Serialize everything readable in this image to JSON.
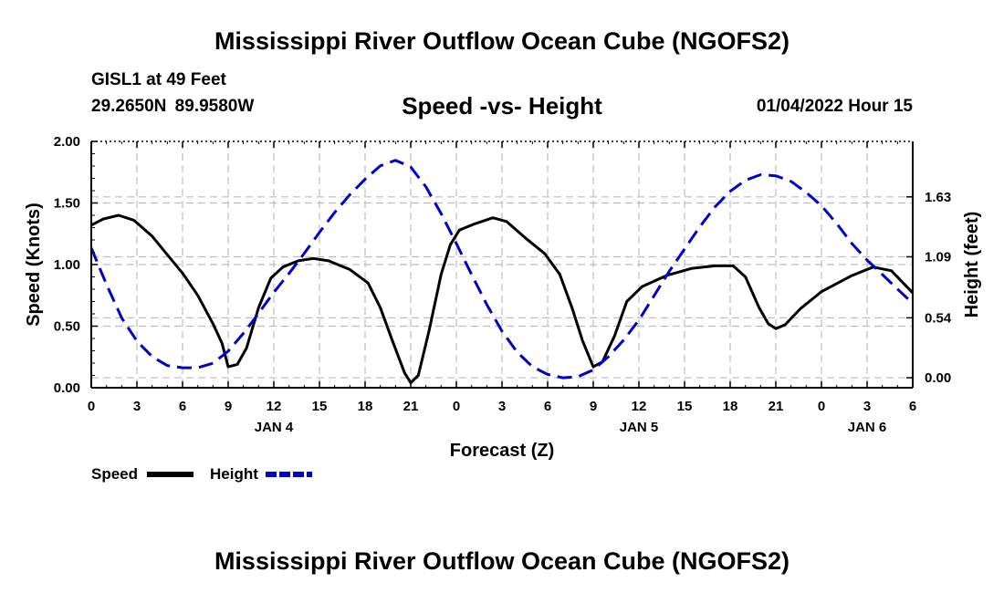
{
  "header": {
    "title": "Mississippi River Outflow Ocean Cube (NGOFS2)",
    "station": "GISL1 at 49 Feet",
    "coords": "29.2650N  89.9580W",
    "subtitle": "Speed -vs- Height",
    "datetime": "01/04/2022 Hour 15"
  },
  "footer": {
    "title": "Mississippi River Outflow Ocean Cube (NGOFS2)"
  },
  "chart_data": {
    "type": "line",
    "title": "Speed -vs- Height",
    "xlabel": "Forecast (Z)",
    "ylabel": "Speed (Knots)",
    "y2label": "Height (feet)",
    "x_range_hours": [
      0,
      54
    ],
    "ylim": [
      0,
      2
    ],
    "y2lim": [
      -0.09,
      2.13
    ],
    "x_ticks": [
      {
        "h": 0,
        "label": "0"
      },
      {
        "h": 3,
        "label": "3"
      },
      {
        "h": 6,
        "label": "6"
      },
      {
        "h": 9,
        "label": "9"
      },
      {
        "h": 12,
        "label": "12"
      },
      {
        "h": 15,
        "label": "15"
      },
      {
        "h": 18,
        "label": "18"
      },
      {
        "h": 21,
        "label": "21"
      },
      {
        "h": 24,
        "label": "0"
      },
      {
        "h": 27,
        "label": "3"
      },
      {
        "h": 30,
        "label": "6"
      },
      {
        "h": 33,
        "label": "9"
      },
      {
        "h": 36,
        "label": "12"
      },
      {
        "h": 39,
        "label": "15"
      },
      {
        "h": 42,
        "label": "18"
      },
      {
        "h": 45,
        "label": "21"
      },
      {
        "h": 48,
        "label": "0"
      },
      {
        "h": 51,
        "label": "3"
      },
      {
        "h": 54,
        "label": "6"
      }
    ],
    "date_labels": [
      {
        "h": 12,
        "label": "JAN 4"
      },
      {
        "h": 36,
        "label": "JAN 5"
      },
      {
        "h": 51,
        "label": "JAN 6"
      }
    ],
    "y_ticks": [
      {
        "v": 0,
        "label": "0.00"
      },
      {
        "v": 0.5,
        "label": "0.50"
      },
      {
        "v": 1.0,
        "label": "1.00"
      },
      {
        "v": 1.5,
        "label": "1.50"
      },
      {
        "v": 2.0,
        "label": "2.00"
      }
    ],
    "y2_ticks": [
      {
        "v": 0,
        "label": "0.00"
      },
      {
        "v": 0.54,
        "label": "0.54"
      },
      {
        "v": 1.09,
        "label": "1.09"
      },
      {
        "v": 1.63,
        "label": "1.63"
      }
    ],
    "series": [
      {
        "name": "Speed",
        "axis": "left",
        "color": "#000000",
        "dash": "solid",
        "points": [
          [
            0,
            1.32
          ],
          [
            0.8,
            1.37
          ],
          [
            1.8,
            1.4
          ],
          [
            2.8,
            1.36
          ],
          [
            4,
            1.23
          ],
          [
            5,
            1.08
          ],
          [
            6,
            0.93
          ],
          [
            7,
            0.75
          ],
          [
            8,
            0.52
          ],
          [
            8.6,
            0.36
          ],
          [
            9,
            0.17
          ],
          [
            9.6,
            0.19
          ],
          [
            10.2,
            0.32
          ],
          [
            11,
            0.65
          ],
          [
            11.8,
            0.89
          ],
          [
            12.6,
            0.98
          ],
          [
            13.6,
            1.03
          ],
          [
            14.6,
            1.05
          ],
          [
            15.6,
            1.03
          ],
          [
            17,
            0.96
          ],
          [
            18.2,
            0.85
          ],
          [
            19,
            0.65
          ],
          [
            19.8,
            0.38
          ],
          [
            20.6,
            0.12
          ],
          [
            21,
            0.04
          ],
          [
            21.5,
            0.1
          ],
          [
            22.2,
            0.46
          ],
          [
            23,
            0.92
          ],
          [
            23.6,
            1.16
          ],
          [
            24.2,
            1.28
          ],
          [
            25.2,
            1.33
          ],
          [
            26.4,
            1.38
          ],
          [
            27.3,
            1.35
          ],
          [
            28.5,
            1.22
          ],
          [
            29.8,
            1.09
          ],
          [
            30.8,
            0.92
          ],
          [
            31.6,
            0.65
          ],
          [
            32.3,
            0.38
          ],
          [
            33,
            0.17
          ],
          [
            33.6,
            0.21
          ],
          [
            34.4,
            0.42
          ],
          [
            35.2,
            0.7
          ],
          [
            36.2,
            0.82
          ],
          [
            37.8,
            0.91
          ],
          [
            39.5,
            0.97
          ],
          [
            41,
            0.99
          ],
          [
            42.2,
            0.99
          ],
          [
            43,
            0.9
          ],
          [
            43.9,
            0.65
          ],
          [
            44.5,
            0.52
          ],
          [
            45,
            0.48
          ],
          [
            45.6,
            0.51
          ],
          [
            46.6,
            0.64
          ],
          [
            48,
            0.78
          ],
          [
            50,
            0.91
          ],
          [
            51.4,
            0.98
          ],
          [
            52.6,
            0.95
          ],
          [
            54,
            0.77
          ]
        ]
      },
      {
        "name": "Height",
        "axis": "right",
        "color": "#0000cc",
        "dash": "dashed",
        "points": [
          [
            0,
            1.17
          ],
          [
            1,
            0.84
          ],
          [
            2,
            0.54
          ],
          [
            3,
            0.33
          ],
          [
            4,
            0.19
          ],
          [
            5,
            0.11
          ],
          [
            6,
            0.09
          ],
          [
            7,
            0.09
          ],
          [
            8,
            0.13
          ],
          [
            9,
            0.24
          ],
          [
            10,
            0.4
          ],
          [
            11,
            0.58
          ],
          [
            12,
            0.77
          ],
          [
            13,
            0.94
          ],
          [
            14,
            1.12
          ],
          [
            15,
            1.31
          ],
          [
            16,
            1.49
          ],
          [
            17,
            1.65
          ],
          [
            18,
            1.79
          ],
          [
            19,
            1.91
          ],
          [
            20,
            1.96
          ],
          [
            21,
            1.9
          ],
          [
            22,
            1.72
          ],
          [
            23,
            1.48
          ],
          [
            24,
            1.21
          ],
          [
            25,
            0.93
          ],
          [
            26,
            0.66
          ],
          [
            27,
            0.42
          ],
          [
            28,
            0.23
          ],
          [
            29,
            0.1
          ],
          [
            30,
            0.03
          ],
          [
            31,
            0.0
          ],
          [
            32,
            0.01
          ],
          [
            33,
            0.07
          ],
          [
            34,
            0.19
          ],
          [
            35,
            0.34
          ],
          [
            36,
            0.52
          ],
          [
            37,
            0.74
          ],
          [
            38,
            0.96
          ],
          [
            39,
            1.16
          ],
          [
            40,
            1.36
          ],
          [
            41,
            1.54
          ],
          [
            42,
            1.68
          ],
          [
            43,
            1.78
          ],
          [
            44,
            1.83
          ],
          [
            45,
            1.82
          ],
          [
            46,
            1.77
          ],
          [
            47,
            1.67
          ],
          [
            48,
            1.55
          ],
          [
            49,
            1.39
          ],
          [
            50,
            1.21
          ],
          [
            51,
            1.06
          ],
          [
            52,
            0.93
          ],
          [
            53,
            0.8
          ],
          [
            54,
            0.67
          ]
        ]
      }
    ],
    "legend": [
      {
        "label": "Speed",
        "color": "#000000",
        "dash": "solid"
      },
      {
        "label": "Height",
        "color": "#0000cc",
        "dash": "dashed"
      }
    ]
  }
}
